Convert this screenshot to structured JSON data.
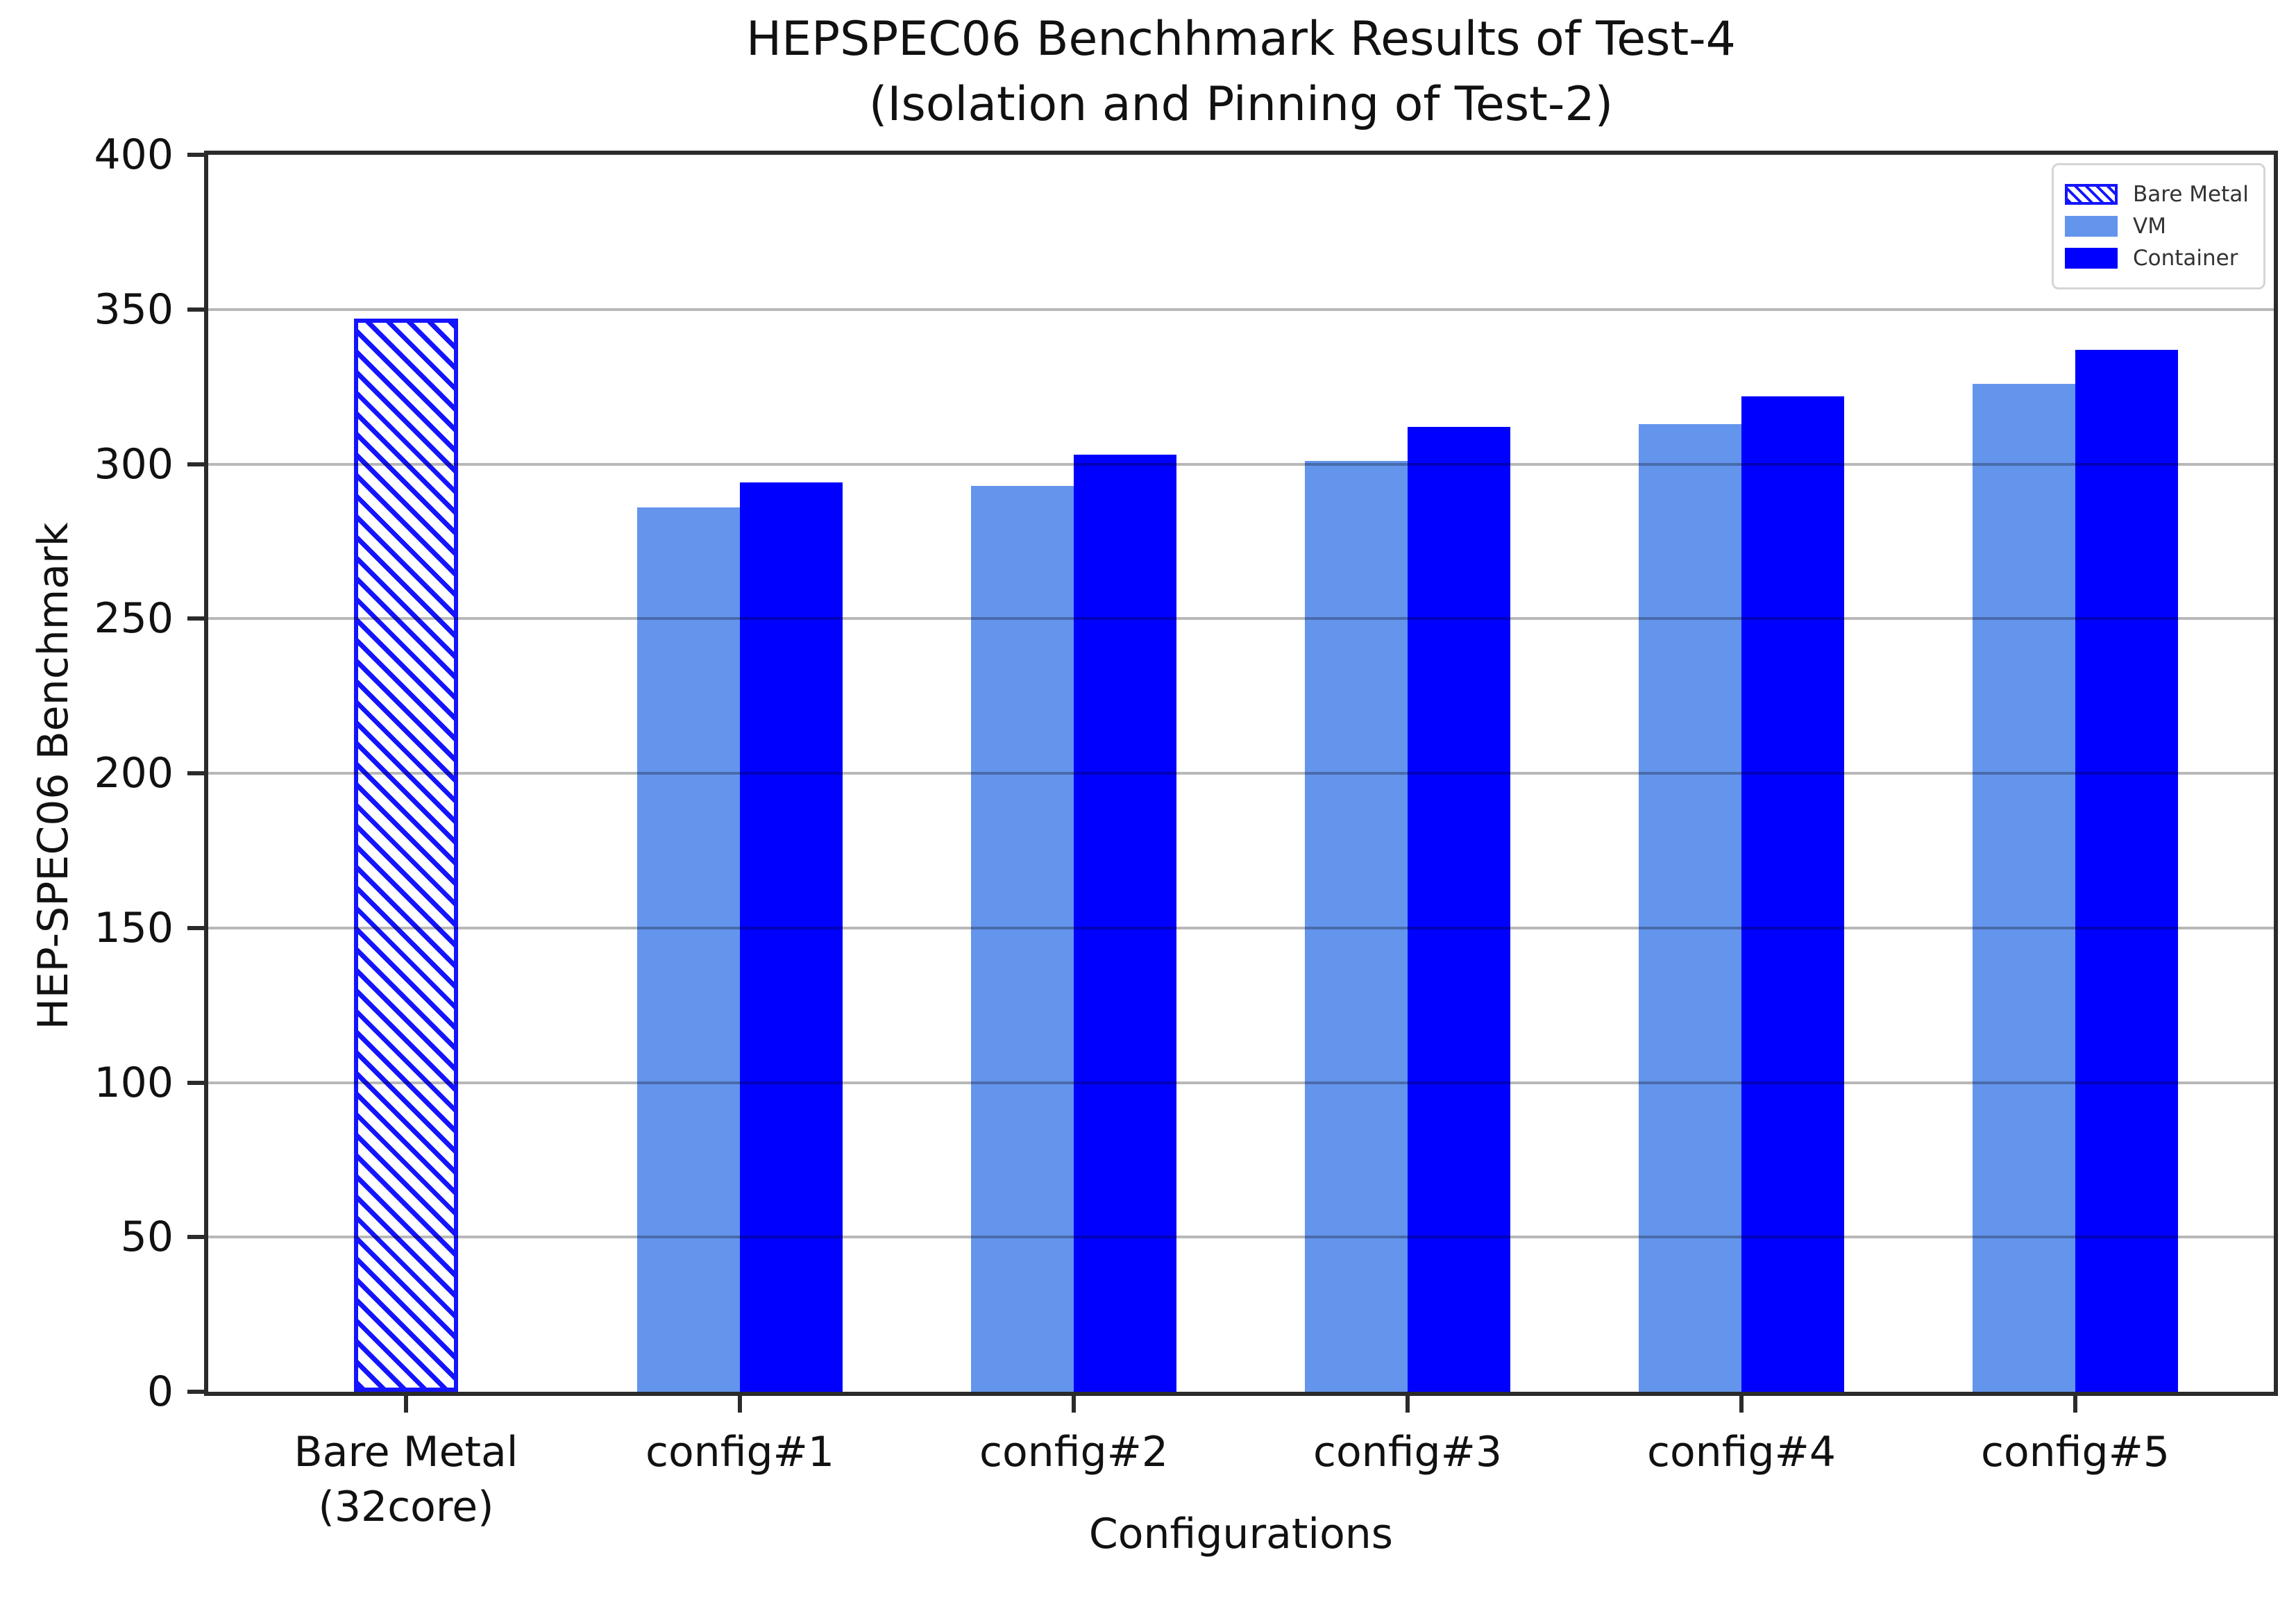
{
  "title": {
    "line1": "HEPSPEC06 Benchhmark Results of Test-4",
    "line2": "(Isolation and Pinning of Test-2)"
  },
  "axes": {
    "ylabel": "HEP-SPEC06 Benchmark",
    "xlabel": "Configurations"
  },
  "legend": {
    "position": "upper right",
    "items": [
      {
        "label": "Bare Metal",
        "style": "hatched"
      },
      {
        "label": "VM",
        "style": "vm"
      },
      {
        "label": "Container",
        "style": "container"
      }
    ]
  },
  "colors": {
    "vm": "#6495ED",
    "container": "#0000FF",
    "bare_metal_edge": "#1414FF",
    "bare_metal_fill": "#ffffff",
    "gridline": "#b0b0b0",
    "spine": "#2b2b2b"
  },
  "chart_data": {
    "type": "bar",
    "title": "HEPSPEC06 Benchhmark Results of Test-4",
    "subtitle": "(Isolation and Pinning of Test-2)",
    "xlabel": "Configurations",
    "ylabel": "HEP-SPEC06 Benchmark",
    "ylim": [
      0,
      400
    ],
    "yticks": [
      0,
      50,
      100,
      150,
      200,
      250,
      300,
      350,
      400
    ],
    "grid": true,
    "legend_position": "upper right",
    "categories": [
      [
        "Bare Metal",
        "(32core)"
      ],
      [
        "config#1"
      ],
      [
        "config#2"
      ],
      [
        "config#3"
      ],
      [
        "config#4"
      ],
      [
        "config#5"
      ]
    ],
    "series": [
      {
        "name": "Bare Metal",
        "style": "hatched",
        "color": "#1414FF",
        "values": [
          347,
          null,
          null,
          null,
          null,
          null
        ]
      },
      {
        "name": "VM",
        "style": "vm",
        "color": "#6495ED",
        "values": [
          null,
          286,
          293,
          301,
          313,
          326
        ]
      },
      {
        "name": "Container",
        "style": "container",
        "color": "#0000FF",
        "values": [
          null,
          294,
          303,
          312,
          322,
          337
        ]
      }
    ]
  }
}
